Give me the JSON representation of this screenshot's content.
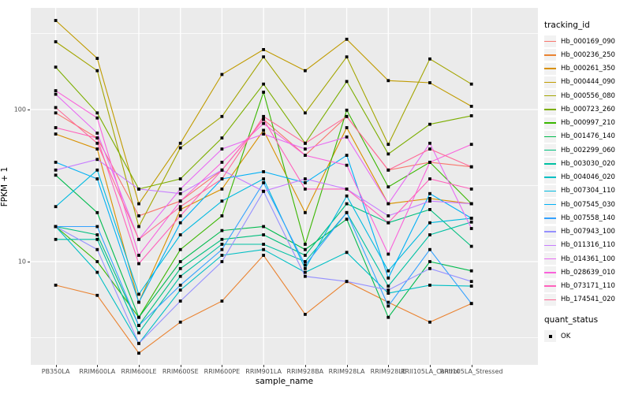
{
  "figure": {
    "background": "#FFFFFF",
    "panel_background": "#EBEBEB",
    "grid_color": "#FFFFFF",
    "axis_text_color": "#4D4D4D",
    "point_color": "#000000"
  },
  "axes": {
    "x_title": "sample_name",
    "y_title": "FPKM + 1",
    "y_tick_labels": [
      "100",
      "10"
    ]
  },
  "legend_tracking": {
    "title": "tracking_id"
  },
  "legend_quant": {
    "title": "quant_status",
    "ok_label": "OK"
  },
  "chart_data": {
    "type": "line",
    "title": "",
    "xlabel": "sample_name",
    "ylabel": "FPKM + 1",
    "y_scale": "log10",
    "y_ticks": [
      10,
      100
    ],
    "y_minor_ticks": [
      3.162,
      31.62,
      316.2
    ],
    "ylim": [
      2.1,
      466
    ],
    "grid": true,
    "legend_position": "right",
    "point_marker": "filled-black-square",
    "quant_status": "OK",
    "x_categories": [
      "PB350LA",
      "RRIM600LA",
      "RRIM600LE",
      "RRIM600SE",
      "RRIM600PE",
      "RRIM901LA",
      "RRIM928BA",
      "RRIM928LA",
      "RRIM928LE",
      "RRII105LA_Control",
      "RRII105LA_Stressed"
    ],
    "series": [
      {
        "name": "Hb_000169_090",
        "color": "#F8766D",
        "values": [
          95,
          65,
          20,
          25,
          40,
          86,
          50,
          90,
          40,
          45,
          42
        ]
      },
      {
        "name": "Hb_000236_250",
        "color": "#EA8331",
        "values": [
          7,
          6,
          2.5,
          4,
          5.5,
          11,
          4.5,
          7.4,
          5.4,
          4,
          5.3
        ]
      },
      {
        "name": "Hb_000261_350",
        "color": "#D89000",
        "values": [
          69,
          55,
          5.4,
          22,
          30,
          73,
          21,
          76,
          24,
          26,
          24
        ]
      },
      {
        "name": "Hb_000444_090",
        "color": "#C09B00",
        "values": [
          385,
          217,
          24,
          60,
          170,
          248,
          180,
          290,
          155,
          150,
          105
        ]
      },
      {
        "name": "Hb_000556_080",
        "color": "#A3A500",
        "values": [
          279,
          180,
          17,
          56,
          90,
          222,
          95,
          222,
          59,
          215,
          147
        ]
      },
      {
        "name": "Hb_000723_260",
        "color": "#7CAE00",
        "values": [
          190,
          95,
          30,
          35,
          65,
          147,
          60,
          153,
          51,
          80,
          91
        ]
      },
      {
        "name": "Hb_000997_210",
        "color": "#39B600",
        "values": [
          17,
          10,
          4.3,
          12,
          20,
          130,
          13,
          99,
          31,
          45,
          24
        ]
      },
      {
        "name": "Hb_001476_140",
        "color": "#00BB4E",
        "values": [
          37,
          21,
          4.3,
          10,
          16,
          17,
          12,
          19,
          4.3,
          10,
          8.7
        ]
      },
      {
        "name": "Hb_002299_060",
        "color": "#00BF7D",
        "values": [
          17,
          15,
          3.8,
          9,
          14,
          15,
          11,
          24,
          18,
          22,
          12.6
        ]
      },
      {
        "name": "Hb_003030_020",
        "color": "#00C1A3",
        "values": [
          14,
          14,
          3.4,
          8,
          13,
          13,
          10,
          21,
          6.9,
          15,
          18.2
        ]
      },
      {
        "name": "Hb_004046_020",
        "color": "#00BFC4",
        "values": [
          17,
          8.5,
          2.9,
          6.5,
          11,
          12,
          8.5,
          11.5,
          6.2,
          7,
          6.9
        ]
      },
      {
        "name": "Hb_007304_110",
        "color": "#00BAE0",
        "values": [
          23,
          40,
          6.1,
          15,
          25,
          35,
          9,
          27,
          8.7,
          18,
          19.3
        ]
      },
      {
        "name": "Hb_007545_030",
        "color": "#00B0F6",
        "values": [
          45,
          35,
          5.4,
          18,
          35,
          39,
          33,
          50,
          7.8,
          28,
          19.3
        ]
      },
      {
        "name": "Hb_007558_140",
        "color": "#35A2FF",
        "values": [
          17,
          17,
          3.8,
          7,
          12,
          33,
          9.5,
          21,
          5.1,
          12,
          5.3
        ]
      },
      {
        "name": "Hb_007943_100",
        "color": "#9590FF",
        "values": [
          17,
          12,
          2.9,
          5.5,
          10,
          29,
          8,
          7.4,
          6.5,
          9,
          7.4
        ]
      },
      {
        "name": "Hb_011316_110",
        "color": "#C77CFF",
        "values": [
          40,
          47,
          30,
          28,
          40,
          29,
          35,
          30,
          20,
          25,
          24
        ]
      },
      {
        "name": "Hb_014361_100",
        "color": "#E76BF3",
        "values": [
          126,
          70,
          14,
          30,
          55,
          69,
          55,
          66,
          24,
          60,
          16.5
        ]
      },
      {
        "name": "Hb_028639_010",
        "color": "#FA62DB",
        "values": [
          133,
          88,
          11,
          25,
          45,
          81,
          50,
          43,
          11.2,
          45,
          59
        ]
      },
      {
        "name": "Hb_073171_110",
        "color": "#FF62BC",
        "values": [
          76,
          65,
          9.7,
          20,
          40,
          86,
          30,
          30,
          18,
          35,
          30
        ]
      },
      {
        "name": "Hb_174541_020",
        "color": "#FF6A98",
        "values": [
          103,
          60,
          14,
          23,
          35,
          90,
          60,
          90,
          40,
          55,
          42
        ]
      }
    ]
  }
}
